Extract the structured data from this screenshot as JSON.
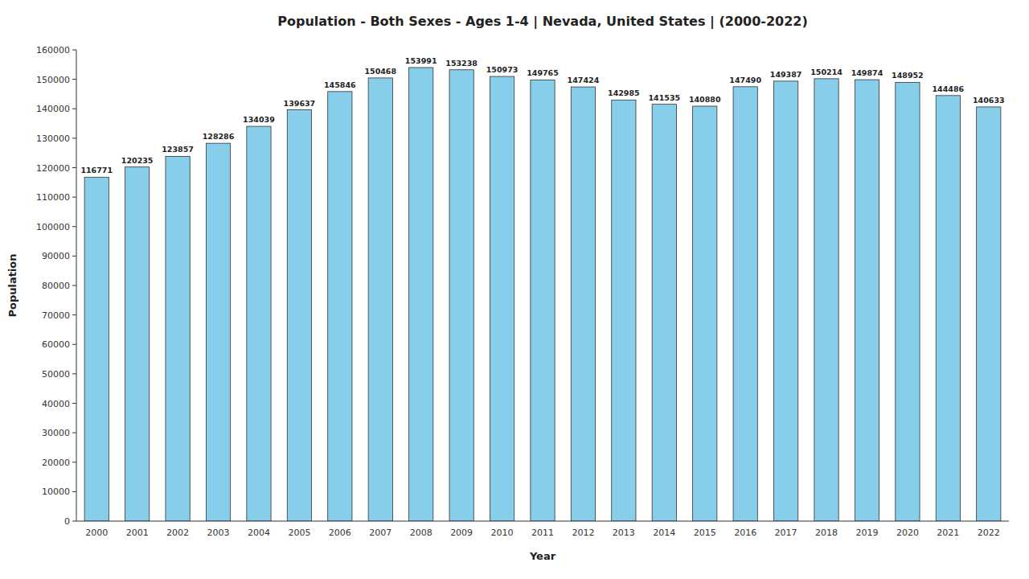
{
  "chart_data": {
    "type": "bar",
    "title": "Population - Both Sexes - Ages 1-4 | Nevada, United States |  (2000-2022)",
    "x_label": "Year",
    "y_label": "Population",
    "categories": [
      "2000",
      "2001",
      "2002",
      "2003",
      "2004",
      "2005",
      "2006",
      "2007",
      "2008",
      "2009",
      "2010",
      "2011",
      "2012",
      "2013",
      "2014",
      "2015",
      "2016",
      "2017",
      "2018",
      "2019",
      "2020",
      "2021",
      "2022"
    ],
    "values": [
      116771,
      120235,
      123857,
      128286,
      134039,
      139637,
      145846,
      150468,
      153991,
      153238,
      150973,
      149765,
      147424,
      142985,
      141535,
      140880,
      147490,
      149387,
      150214,
      149874,
      148952,
      144486,
      140633
    ],
    "color": "#87CEEB",
    "ylim": [
      0,
      160000
    ],
    "yticks": [
      0,
      10000,
      20000,
      30000,
      40000,
      50000,
      60000,
      70000,
      80000,
      90000,
      100000,
      110000,
      120000,
      130000,
      140000,
      150000,
      160000
    ],
    "grid": false,
    "data_labels": true
  }
}
